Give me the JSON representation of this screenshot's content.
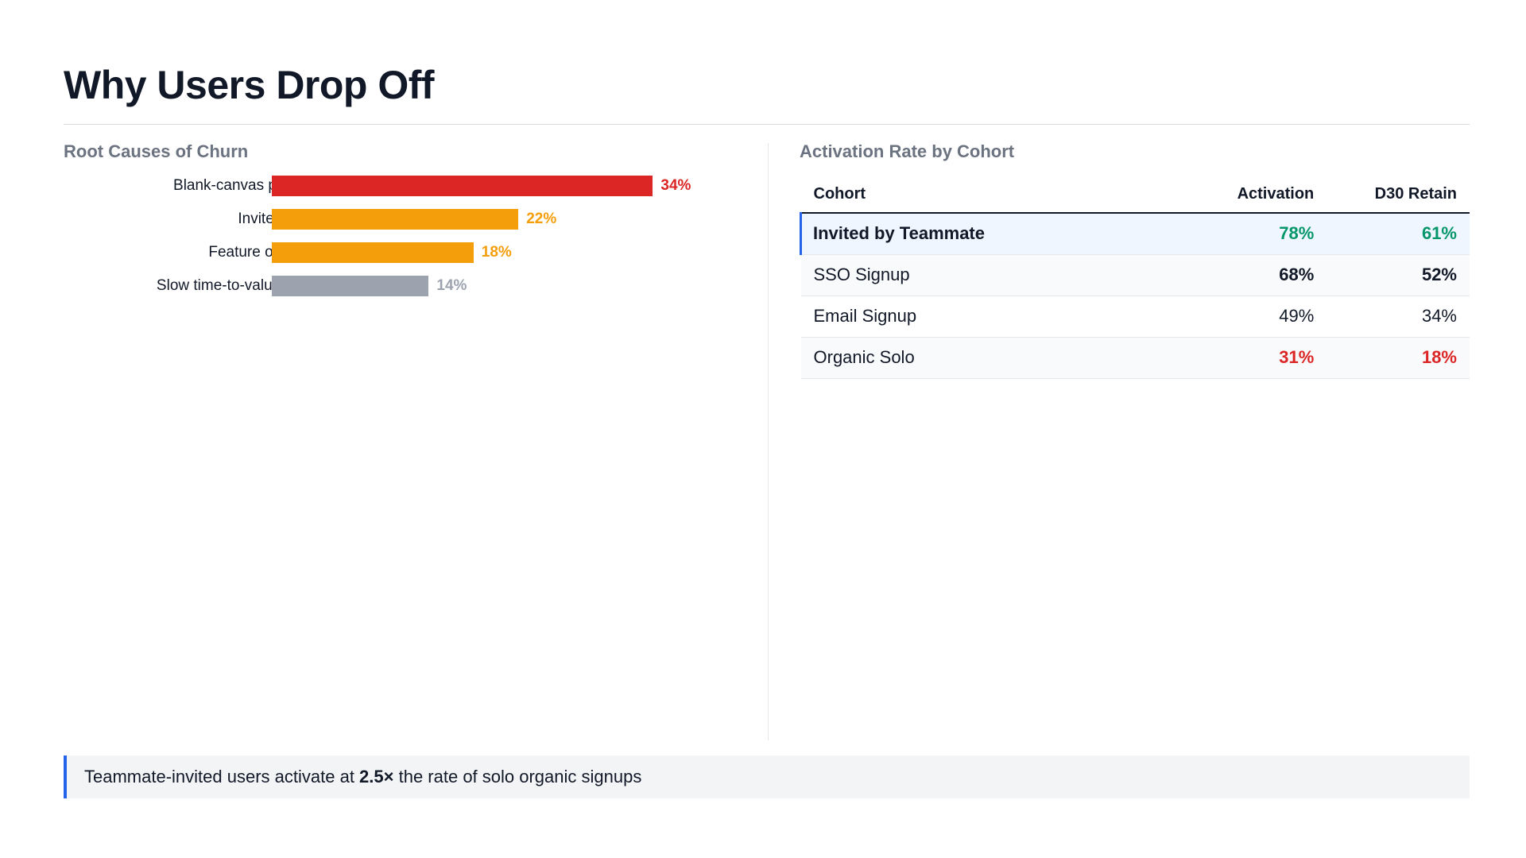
{
  "title": "Why Users Drop Off",
  "colors": {
    "red": "#dc2626",
    "orange": "#f59e0b",
    "gray": "#9ca3af",
    "green": "#059669",
    "blue": "#2563eb"
  },
  "chart_data": {
    "type": "bar",
    "orientation": "horizontal",
    "title": "Root Causes of Churn",
    "categories": [
      "Blank-canvas problem",
      "Invite friction",
      "Feature overload",
      "Slow time-to-value (solo)"
    ],
    "values": [
      34,
      22,
      18,
      14
    ],
    "value_labels": [
      "34%",
      "22%",
      "18%",
      "14%"
    ],
    "bar_colors": [
      "#dc2626",
      "#f59e0b",
      "#f59e0b",
      "#9ca3af"
    ],
    "grid": false,
    "legend": "none"
  },
  "table": {
    "title": "Activation Rate by Cohort",
    "headers": [
      "Cohort",
      "Activation",
      "D30 Retain"
    ],
    "rows": [
      {
        "cohort": "Invited by Teammate",
        "activation": "78%",
        "retain": "61%"
      },
      {
        "cohort": "SSO Signup",
        "activation": "68%",
        "retain": "52%"
      },
      {
        "cohort": "Email Signup",
        "activation": "49%",
        "retain": "34%"
      },
      {
        "cohort": "Organic Solo",
        "activation": "31%",
        "retain": "18%"
      }
    ]
  },
  "callout": {
    "prefix": "Teammate-invited users activate at ",
    "emphasis": "2.5×",
    "suffix": " the rate of solo organic signups"
  }
}
